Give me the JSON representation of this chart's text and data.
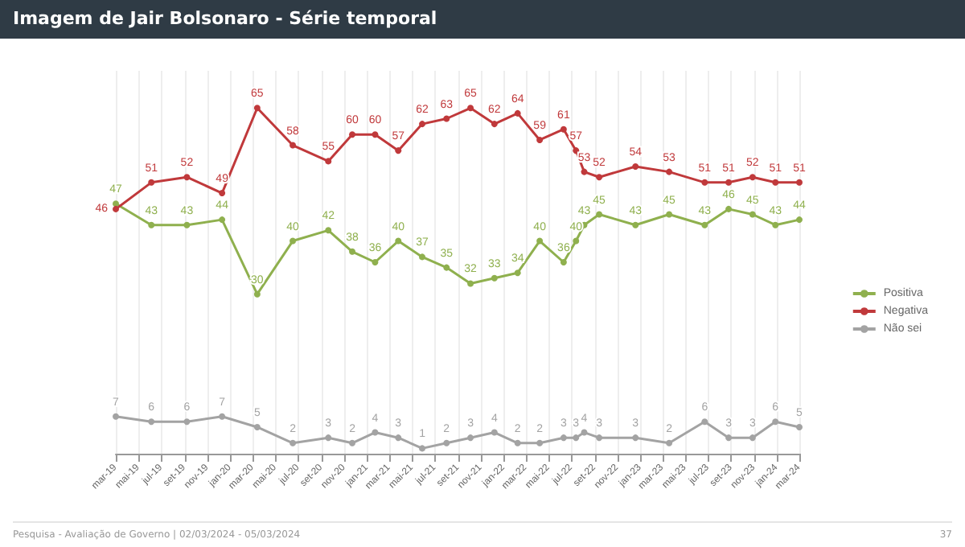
{
  "chart_data": {
    "type": "line",
    "title": "Imagem de Jair Bolsonaro - Série temporal",
    "x": [
      "2019-03-01",
      "2019-06-04",
      "2019-09-07",
      "2019-12-10",
      "2020-03-13",
      "2020-06-16",
      "2020-09-19",
      "2020-11-22",
      "2021-01-22",
      "2021-03-25",
      "2021-05-28",
      "2021-08-01",
      "2021-10-04",
      "2021-12-07",
      "2022-02-07",
      "2022-04-07",
      "2022-06-10",
      "2022-07-13",
      "2022-08-04",
      "2022-09-13",
      "2022-12-19",
      "2023-03-19",
      "2023-06-22",
      "2023-08-25",
      "2023-10-28",
      "2023-12-28",
      "2024-03-01"
    ],
    "series": [
      {
        "name": "Positiva",
        "color": "#8fb04e",
        "values": [
          47,
          43,
          43,
          44,
          30,
          40,
          42,
          38,
          36,
          40,
          37,
          35,
          32,
          33,
          34,
          40,
          36,
          40,
          43,
          45,
          43,
          45,
          43,
          46,
          45,
          43,
          44
        ]
      },
      {
        "name": "Negativa",
        "color": "#c0393b",
        "values": [
          46,
          51,
          52,
          49,
          65,
          58,
          55,
          60,
          60,
          57,
          62,
          63,
          65,
          62,
          64,
          59,
          61,
          57,
          53,
          52,
          54,
          53,
          51,
          51,
          52,
          51,
          51
        ]
      },
      {
        "name": "Não sei",
        "color": "#a3a3a3",
        "values": [
          7,
          6,
          6,
          7,
          5,
          2,
          3,
          2,
          4,
          3,
          1,
          2,
          3,
          4,
          2,
          2,
          3,
          3,
          4,
          3,
          3,
          2,
          6,
          3,
          3,
          6,
          5
        ]
      }
    ],
    "xlim": [
      "2019-03-01",
      "2024-03-01"
    ],
    "xticks": [
      {
        "value": "2019-03-01",
        "label": "mar-19"
      },
      {
        "value": "2019-05-01",
        "label": "mai-19"
      },
      {
        "value": "2019-07-01",
        "label": "jul-19"
      },
      {
        "value": "2019-09-01",
        "label": "set-19"
      },
      {
        "value": "2019-11-01",
        "label": "nov-19"
      },
      {
        "value": "2020-01-01",
        "label": "jan-20"
      },
      {
        "value": "2020-03-01",
        "label": "mar-20"
      },
      {
        "value": "2020-05-01",
        "label": "mai-20"
      },
      {
        "value": "2020-07-01",
        "label": "jul-20"
      },
      {
        "value": "2020-09-01",
        "label": "set-20"
      },
      {
        "value": "2020-11-01",
        "label": "nov-20"
      },
      {
        "value": "2021-01-01",
        "label": "jan-21"
      },
      {
        "value": "2021-03-01",
        "label": "mar-21"
      },
      {
        "value": "2021-05-01",
        "label": "mai-21"
      },
      {
        "value": "2021-07-01",
        "label": "jul-21"
      },
      {
        "value": "2021-09-01",
        "label": "set-21"
      },
      {
        "value": "2021-11-01",
        "label": "nov-21"
      },
      {
        "value": "2022-01-01",
        "label": "jan-22"
      },
      {
        "value": "2022-03-01",
        "label": "mar-22"
      },
      {
        "value": "2022-05-01",
        "label": "mai-22"
      },
      {
        "value": "2022-07-01",
        "label": "jul-22"
      },
      {
        "value": "2022-09-01",
        "label": "set-22"
      },
      {
        "value": "2022-11-01",
        "label": "nov-22"
      },
      {
        "value": "2023-01-01",
        "label": "jan-23"
      },
      {
        "value": "2023-03-01",
        "label": "mar-23"
      },
      {
        "value": "2023-05-01",
        "label": "mai-23"
      },
      {
        "value": "2023-07-01",
        "label": "jul-23"
      },
      {
        "value": "2023-09-01",
        "label": "set-23"
      },
      {
        "value": "2023-11-01",
        "label": "nov-23"
      },
      {
        "value": "2024-01-01",
        "label": "jan-24"
      },
      {
        "value": "2024-03-01",
        "label": "mar-24"
      }
    ],
    "ylim": [
      0,
      72
    ],
    "tick_labels": "x",
    "grid": "x",
    "legend": "right",
    "marker": "circle",
    "data_labels": true,
    "annotations": [
      "Pesquisa - Avaliação de Governo | 02/03/2024 - 05/03/2024",
      "37"
    ]
  }
}
